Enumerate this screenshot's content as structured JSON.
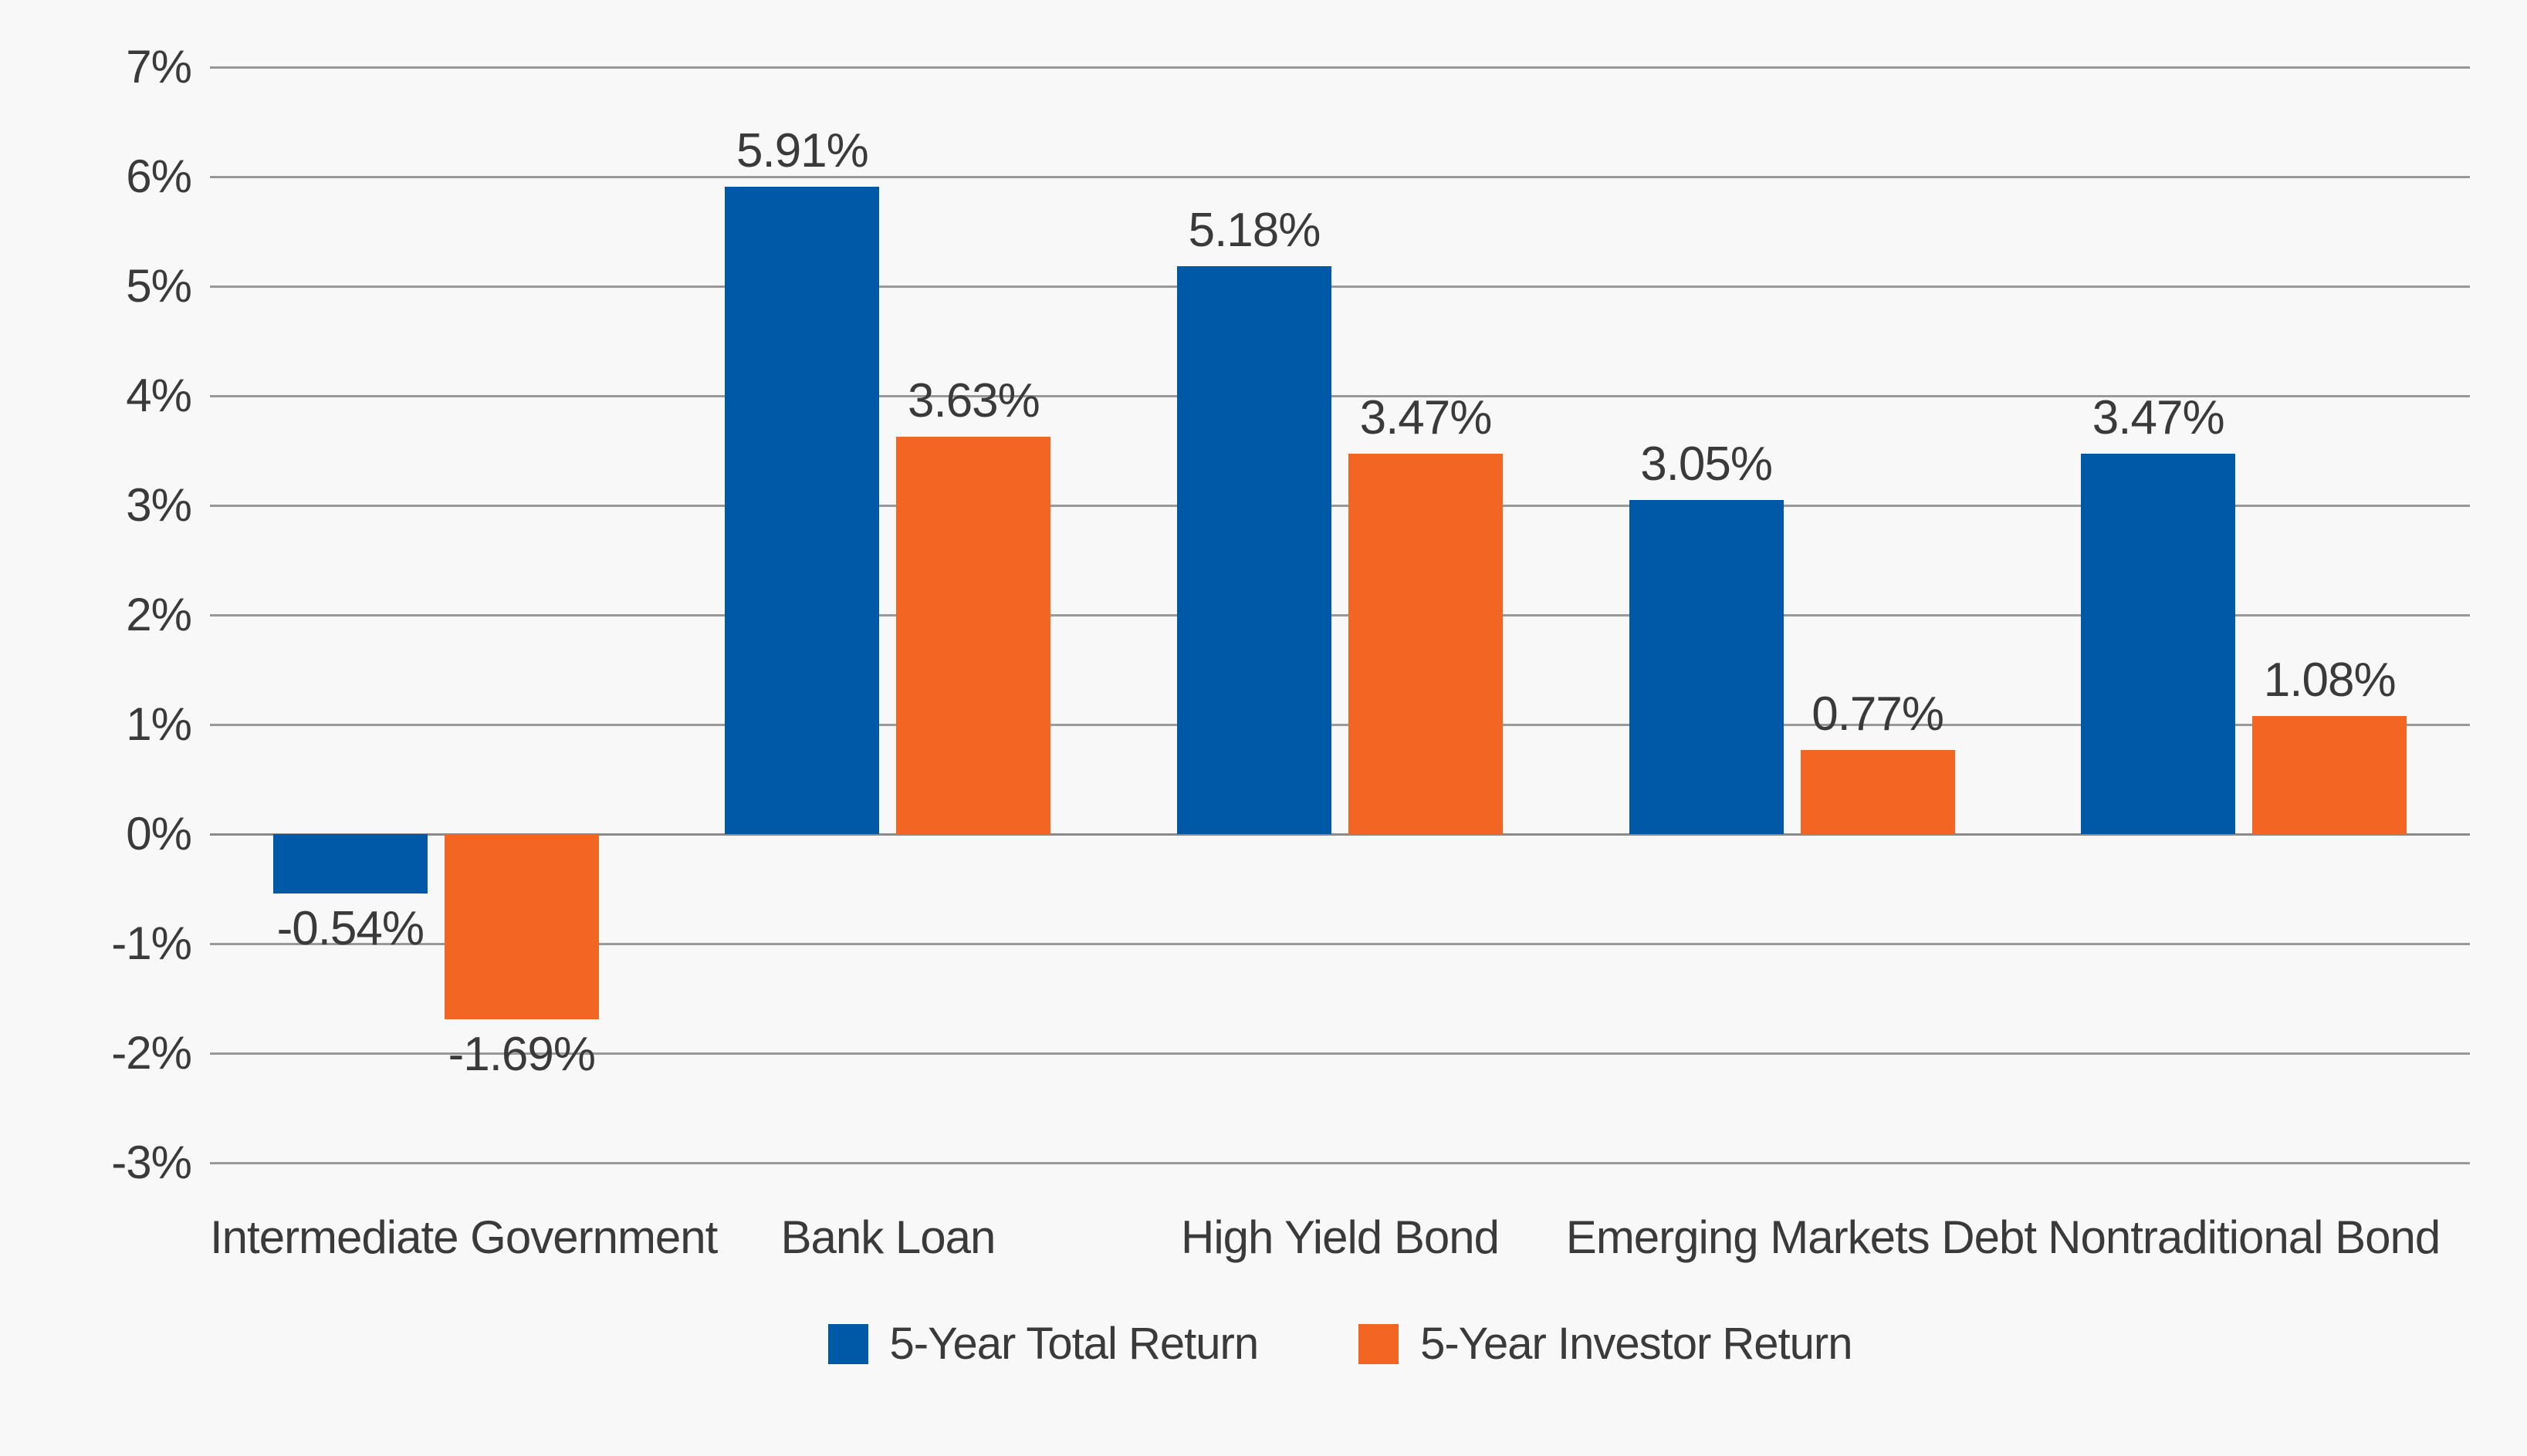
{
  "chart_data": {
    "type": "bar",
    "title": "",
    "categories": [
      "Intermediate Government",
      "Bank Loan",
      "High Yield Bond",
      "Emerging Markets Debt",
      "Nontraditional Bond"
    ],
    "series": [
      {
        "name": "5-Year Total Return",
        "color": "#0059a7",
        "values": [
          -0.54,
          5.91,
          5.18,
          3.05,
          3.47
        ],
        "labels": [
          "-0.54%",
          "5.91%",
          "5.18%",
          "3.05%",
          "3.47%"
        ]
      },
      {
        "name": "5-Year Investor Return",
        "color": "#f26522",
        "values": [
          -1.69,
          3.63,
          3.47,
          0.77,
          1.08
        ],
        "labels": [
          "-1.69%",
          "3.63%",
          "3.47%",
          "0.77%",
          "1.08%"
        ]
      }
    ],
    "y_axis": {
      "min": -3,
      "max": 7,
      "tick_step": 1,
      "ticks": [
        {
          "value": 7,
          "label": "7%"
        },
        {
          "value": 6,
          "label": "6%"
        },
        {
          "value": 5,
          "label": "5%"
        },
        {
          "value": 4,
          "label": "4%"
        },
        {
          "value": 3,
          "label": "3%"
        },
        {
          "value": 2,
          "label": "2%"
        },
        {
          "value": 1,
          "label": "1%"
        },
        {
          "value": 0,
          "label": "0%"
        },
        {
          "value": -1,
          "label": "-1%"
        },
        {
          "value": -2,
          "label": "-2%"
        },
        {
          "value": -3,
          "label": "-3%"
        }
      ]
    },
    "grid": true,
    "legend_position": "bottom"
  },
  "colors": {
    "background": "#f8f8f8",
    "gridline": "#999999",
    "zero_line": "#8a8a8a",
    "text": "#3a3a3a"
  }
}
